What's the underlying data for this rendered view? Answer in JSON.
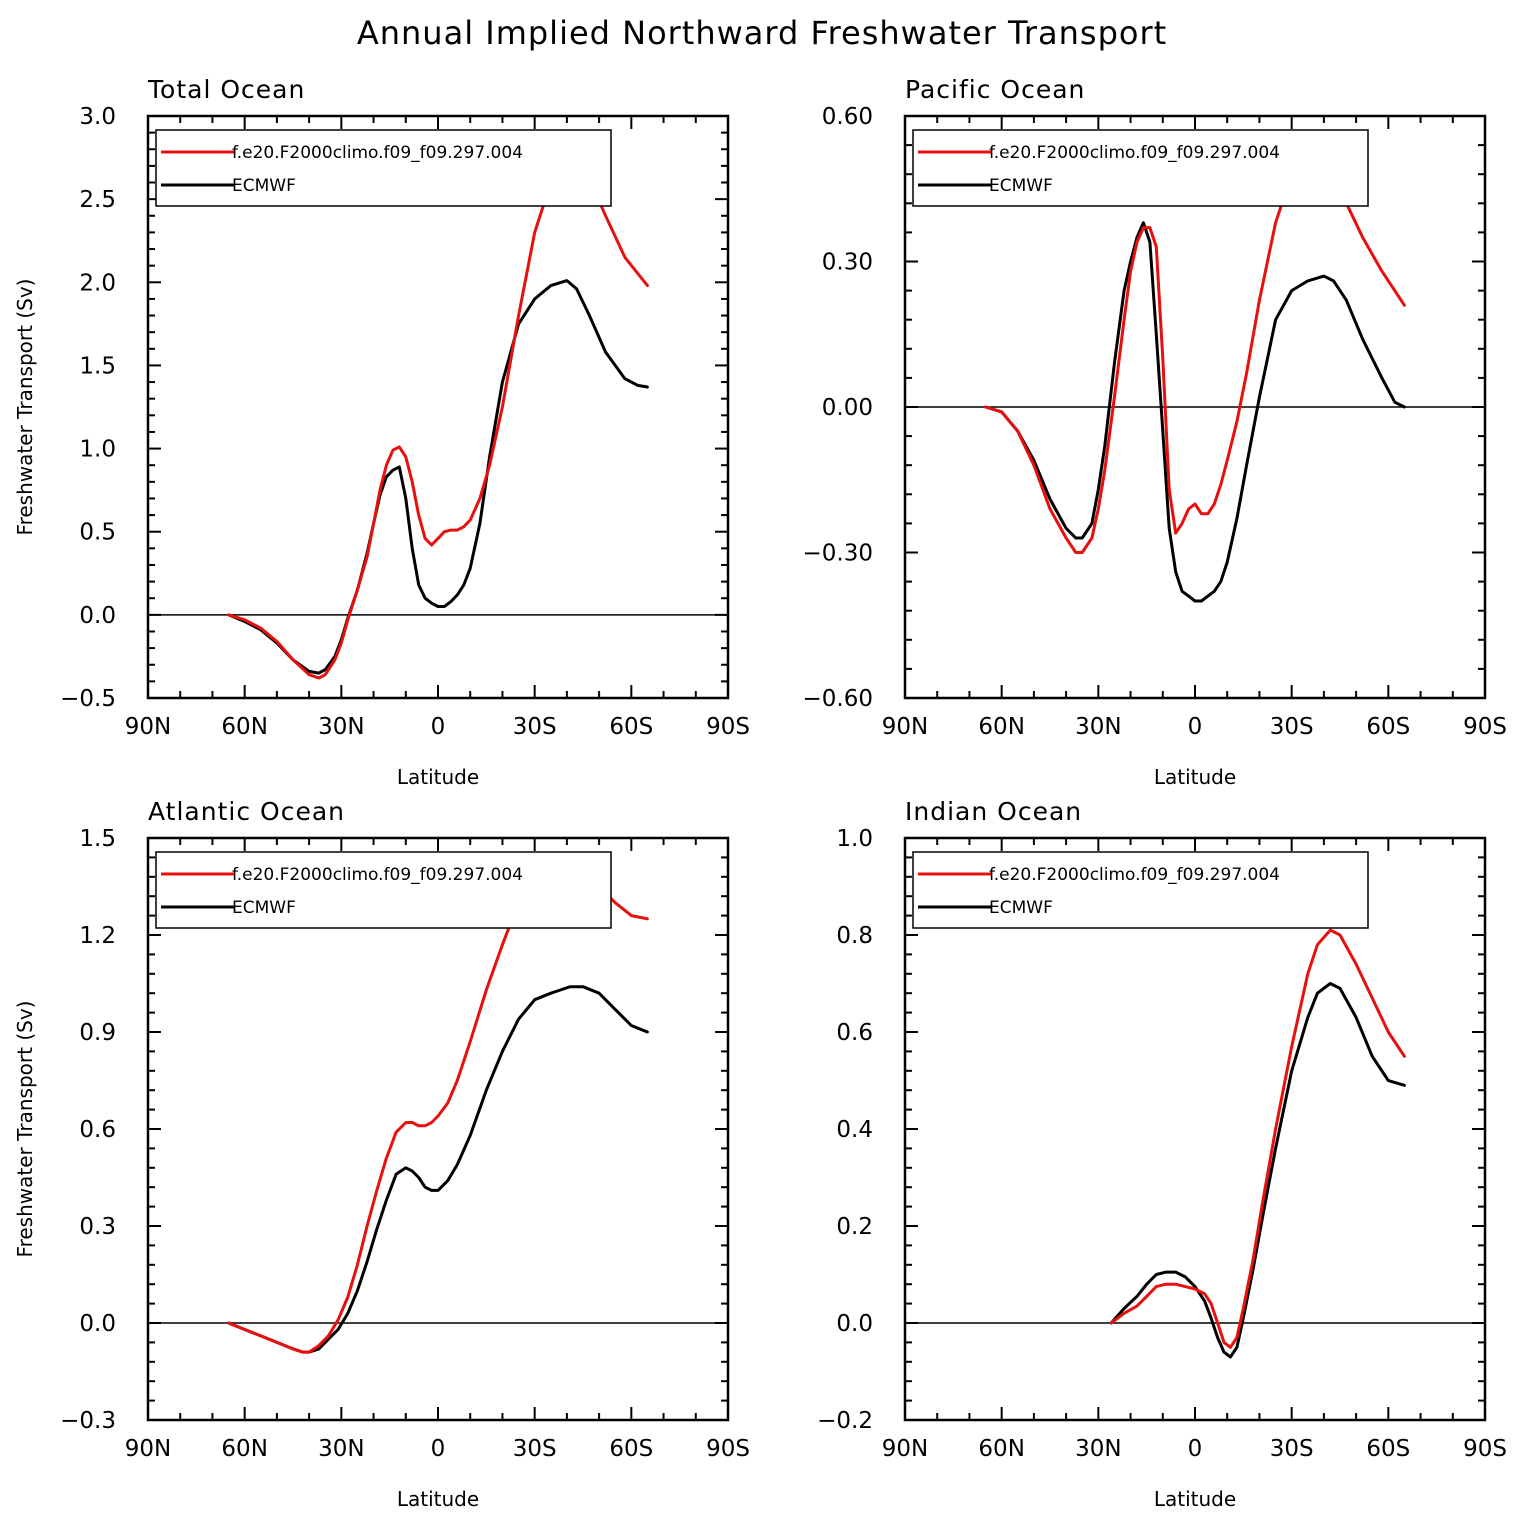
{
  "figure": {
    "title": "Annual Implied Northward Freshwater Transport",
    "xlabel": "Latitude",
    "ylabel": "Freshwater Transport (Sv)",
    "x_tick_labels": [
      "90N",
      "60N",
      "30N",
      "0",
      "30S",
      "60S",
      "90S"
    ]
  },
  "colors": {
    "f.e20.F2000climo.f09_f09.297.004": "#e8100e",
    "ECMWF": "#000000",
    "zero_line": "#000000"
  },
  "chart_data": [
    {
      "type": "line",
      "title": "Total Ocean",
      "xlabel": "Latitude",
      "ylabel": "Freshwater Transport (Sv)",
      "xlim": [
        90,
        -90
      ],
      "ylim": [
        -0.5,
        3.0
      ],
      "y_ticks": [
        "3.0",
        "2.5",
        "2.0",
        "1.5",
        "1.0",
        "0.5",
        "0.0",
        "−0.5"
      ],
      "legend_position": "top-left",
      "series": [
        {
          "name": "f.e20.F2000climo.f09_f09.297.004",
          "x": [
            65,
            60,
            55,
            50,
            45,
            40,
            37,
            35,
            32,
            30,
            28,
            25,
            22,
            20,
            18,
            16,
            14,
            12,
            10,
            8,
            6,
            4,
            2,
            0,
            -2,
            -4,
            -6,
            -8,
            -10,
            -13,
            -16,
            -20,
            -25,
            -30,
            -35,
            -40,
            -43,
            -47,
            -52,
            -58,
            -65
          ],
          "y": [
            0,
            -0.03,
            -0.08,
            -0.16,
            -0.27,
            -0.36,
            -0.38,
            -0.36,
            -0.27,
            -0.17,
            -0.03,
            0.15,
            0.35,
            0.55,
            0.75,
            0.9,
            0.99,
            1.01,
            0.95,
            0.8,
            0.6,
            0.46,
            0.42,
            0.46,
            0.5,
            0.51,
            0.51,
            0.53,
            0.57,
            0.7,
            0.9,
            1.25,
            1.8,
            2.3,
            2.6,
            2.75,
            2.75,
            2.62,
            2.4,
            2.15,
            1.98
          ]
        },
        {
          "name": "ECMWF",
          "x": [
            65,
            60,
            55,
            50,
            45,
            40,
            37,
            35,
            32,
            30,
            28,
            25,
            22,
            20,
            18,
            16,
            14,
            12,
            10,
            8,
            6,
            4,
            2,
            0,
            -2,
            -4,
            -6,
            -8,
            -10,
            -13,
            -16,
            -20,
            -25,
            -30,
            -35,
            -40,
            -43,
            -47,
            -52,
            -58,
            -62,
            -65
          ],
          "y": [
            0,
            -0.04,
            -0.09,
            -0.17,
            -0.27,
            -0.34,
            -0.35,
            -0.33,
            -0.25,
            -0.15,
            -0.02,
            0.15,
            0.37,
            0.55,
            0.72,
            0.83,
            0.87,
            0.89,
            0.7,
            0.4,
            0.18,
            0.1,
            0.07,
            0.05,
            0.05,
            0.08,
            0.12,
            0.18,
            0.28,
            0.55,
            0.95,
            1.4,
            1.75,
            1.9,
            1.98,
            2.01,
            1.96,
            1.8,
            1.58,
            1.42,
            1.38,
            1.37
          ]
        }
      ]
    },
    {
      "type": "line",
      "title": "Pacific Ocean",
      "xlabel": "Latitude",
      "ylabel": "",
      "xlim": [
        90,
        -90
      ],
      "ylim": [
        -0.6,
        0.6
      ],
      "y_ticks": [
        "0.60",
        "0.30",
        "0.00",
        "−0.30",
        "−0.60"
      ],
      "legend_position": "top-left",
      "series": [
        {
          "name": "f.e20.F2000climo.f09_f09.297.004",
          "x": [
            65,
            60,
            55,
            50,
            45,
            40,
            37,
            35,
            32,
            30,
            28,
            25,
            22,
            20,
            18,
            16,
            14,
            12,
            10,
            8,
            6,
            4,
            2,
            0,
            -2,
            -4,
            -6,
            -8,
            -10,
            -13,
            -16,
            -20,
            -25,
            -30,
            -35,
            -40,
            -43,
            -47,
            -52,
            -58,
            -65
          ],
          "y": [
            0,
            -0.01,
            -0.05,
            -0.12,
            -0.21,
            -0.27,
            -0.3,
            -0.3,
            -0.27,
            -0.21,
            -0.13,
            0.02,
            0.18,
            0.28,
            0.34,
            0.37,
            0.37,
            0.33,
            0.1,
            -0.17,
            -0.26,
            -0.24,
            -0.21,
            -0.2,
            -0.22,
            -0.22,
            -0.2,
            -0.16,
            -0.11,
            -0.03,
            0.07,
            0.22,
            0.38,
            0.48,
            0.53,
            0.52,
            0.48,
            0.42,
            0.35,
            0.28,
            0.21
          ]
        },
        {
          "name": "ECMWF",
          "x": [
            65,
            60,
            55,
            50,
            45,
            40,
            37,
            35,
            32,
            30,
            28,
            25,
            22,
            20,
            18,
            16,
            14,
            12,
            10,
            8,
            6,
            4,
            2,
            0,
            -2,
            -4,
            -6,
            -8,
            -10,
            -13,
            -16,
            -20,
            -25,
            -30,
            -35,
            -40,
            -43,
            -47,
            -52,
            -58,
            -62,
            -65
          ],
          "y": [
            0,
            -0.01,
            -0.05,
            -0.11,
            -0.19,
            -0.25,
            -0.27,
            -0.27,
            -0.24,
            -0.17,
            -0.08,
            0.09,
            0.24,
            0.3,
            0.35,
            0.38,
            0.34,
            0.15,
            -0.05,
            -0.25,
            -0.34,
            -0.38,
            -0.39,
            -0.4,
            -0.4,
            -0.39,
            -0.38,
            -0.36,
            -0.32,
            -0.23,
            -0.12,
            0.02,
            0.18,
            0.24,
            0.26,
            0.27,
            0.26,
            0.22,
            0.14,
            0.06,
            0.01,
            0.0
          ]
        }
      ]
    },
    {
      "type": "line",
      "title": "Atlantic Ocean",
      "xlabel": "Latitude",
      "ylabel": "Freshwater Transport (Sv)",
      "xlim": [
        90,
        -90
      ],
      "ylim": [
        -0.3,
        1.5
      ],
      "y_ticks": [
        "1.5",
        "1.2",
        "0.9",
        "0.6",
        "0.3",
        "0.0",
        "−0.3"
      ],
      "legend_position": "top-left",
      "series": [
        {
          "name": "f.e20.F2000climo.f09_f09.297.004",
          "x": [
            65,
            60,
            55,
            50,
            45,
            42,
            40,
            37,
            34,
            31,
            28,
            25,
            22,
            19,
            16,
            13,
            10,
            8,
            6,
            4,
            2,
            0,
            -3,
            -6,
            -10,
            -15,
            -20,
            -25,
            -30,
            -35,
            -38,
            -41,
            -45,
            -50,
            -55,
            -60,
            -65
          ],
          "y": [
            0,
            -0.02,
            -0.04,
            -0.06,
            -0.08,
            -0.09,
            -0.09,
            -0.07,
            -0.04,
            0.01,
            0.08,
            0.18,
            0.3,
            0.41,
            0.51,
            0.59,
            0.62,
            0.62,
            0.61,
            0.61,
            0.62,
            0.64,
            0.68,
            0.75,
            0.87,
            1.03,
            1.17,
            1.3,
            1.38,
            1.42,
            1.43,
            1.43,
            1.4,
            1.35,
            1.3,
            1.26,
            1.25
          ]
        },
        {
          "name": "ECMWF",
          "x": [
            65,
            60,
            55,
            50,
            45,
            42,
            40,
            37,
            34,
            31,
            28,
            25,
            22,
            19,
            16,
            13,
            10,
            8,
            6,
            4,
            2,
            0,
            -3,
            -6,
            -10,
            -15,
            -20,
            -25,
            -30,
            -35,
            -38,
            -41,
            -45,
            -50,
            -55,
            -60,
            -65
          ],
          "y": [
            0,
            -0.02,
            -0.04,
            -0.06,
            -0.08,
            -0.09,
            -0.09,
            -0.08,
            -0.05,
            -0.02,
            0.03,
            0.1,
            0.19,
            0.29,
            0.38,
            0.46,
            0.48,
            0.47,
            0.45,
            0.42,
            0.41,
            0.41,
            0.44,
            0.49,
            0.58,
            0.72,
            0.84,
            0.94,
            1.0,
            1.02,
            1.03,
            1.04,
            1.04,
            1.02,
            0.97,
            0.92,
            0.9
          ]
        }
      ]
    },
    {
      "type": "line",
      "title": "Indian Ocean",
      "xlabel": "Latitude",
      "ylabel": "",
      "xlim": [
        90,
        -90
      ],
      "ylim": [
        -0.2,
        1.0
      ],
      "y_ticks": [
        "1.0",
        "0.8",
        "0.6",
        "0.4",
        "0.2",
        "0.0",
        "−0.2"
      ],
      "legend_position": "top-left",
      "series": [
        {
          "name": "f.e20.F2000climo.f09_f09.297.004",
          "x": [
            26,
            22,
            18,
            15,
            12,
            9,
            6,
            3,
            0,
            -3,
            -5,
            -7,
            -9,
            -11,
            -13,
            -15,
            -18,
            -21,
            -25,
            -30,
            -35,
            -38,
            -42,
            -45,
            -50,
            -55,
            -60,
            -65
          ],
          "y": [
            0,
            0.02,
            0.035,
            0.055,
            0.075,
            0.08,
            0.08,
            0.075,
            0.07,
            0.06,
            0.04,
            0.0,
            -0.04,
            -0.05,
            -0.03,
            0.03,
            0.13,
            0.25,
            0.4,
            0.57,
            0.72,
            0.78,
            0.81,
            0.8,
            0.74,
            0.67,
            0.6,
            0.55
          ]
        },
        {
          "name": "ECMWF",
          "x": [
            26,
            22,
            18,
            15,
            12,
            9,
            6,
            3,
            0,
            -3,
            -5,
            -7,
            -9,
            -11,
            -13,
            -15,
            -18,
            -21,
            -25,
            -30,
            -35,
            -38,
            -42,
            -45,
            -50,
            -55,
            -60,
            -65
          ],
          "y": [
            0,
            0.03,
            0.055,
            0.08,
            0.1,
            0.105,
            0.105,
            0.095,
            0.075,
            0.045,
            0.01,
            -0.03,
            -0.06,
            -0.07,
            -0.05,
            0.01,
            0.11,
            0.22,
            0.36,
            0.52,
            0.63,
            0.68,
            0.7,
            0.69,
            0.63,
            0.55,
            0.5,
            0.49
          ]
        }
      ]
    }
  ]
}
